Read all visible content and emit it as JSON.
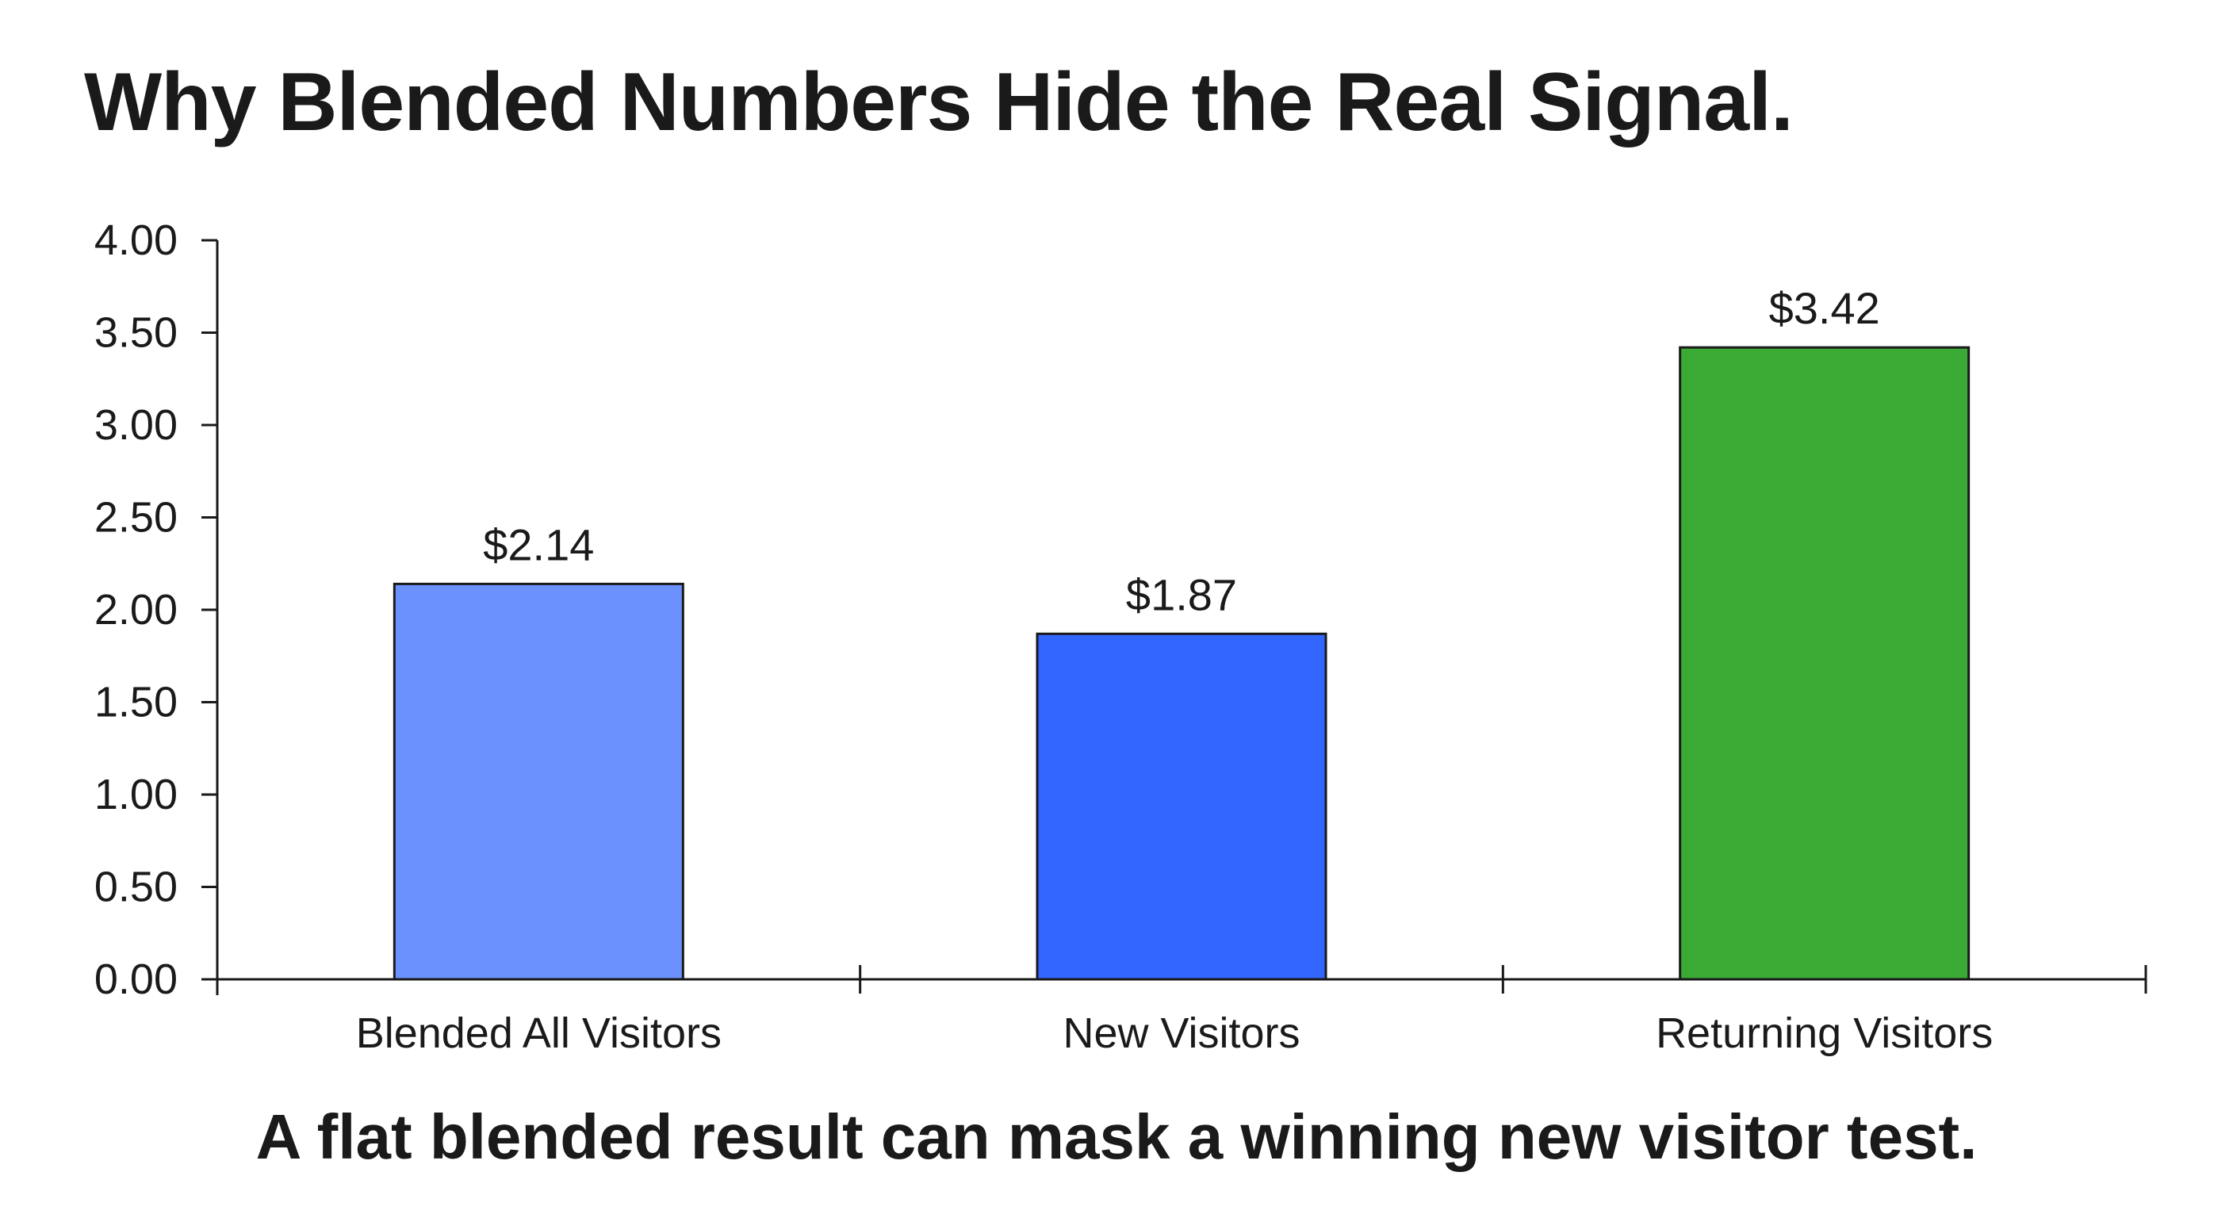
{
  "chart_data": {
    "type": "bar",
    "title": "Why Blended Numbers Hide the Real Signal.",
    "subtitle": "A flat blended result can mask a winning new visitor test.",
    "categories": [
      "Blended All Visitors",
      "New Visitors",
      "Returning Visitors"
    ],
    "values": [
      2.14,
      1.87,
      3.42
    ],
    "data_labels": [
      "$2.14",
      "$1.87",
      "$3.42"
    ],
    "colors": [
      "#6a91fd",
      "#3366ff",
      "#3aaa35"
    ],
    "ylim": [
      0,
      4
    ],
    "yticks": [
      0,
      0.5,
      1,
      1.5,
      2,
      2.5,
      3,
      3.5,
      4
    ],
    "ytick_labels": [
      "0.00",
      "0.50",
      "1.00",
      "1.50",
      "2.00",
      "2.50",
      "3.00",
      "3.50",
      "4.00"
    ],
    "xlabel": "",
    "ylabel": "",
    "grid": false,
    "legend": "none"
  }
}
